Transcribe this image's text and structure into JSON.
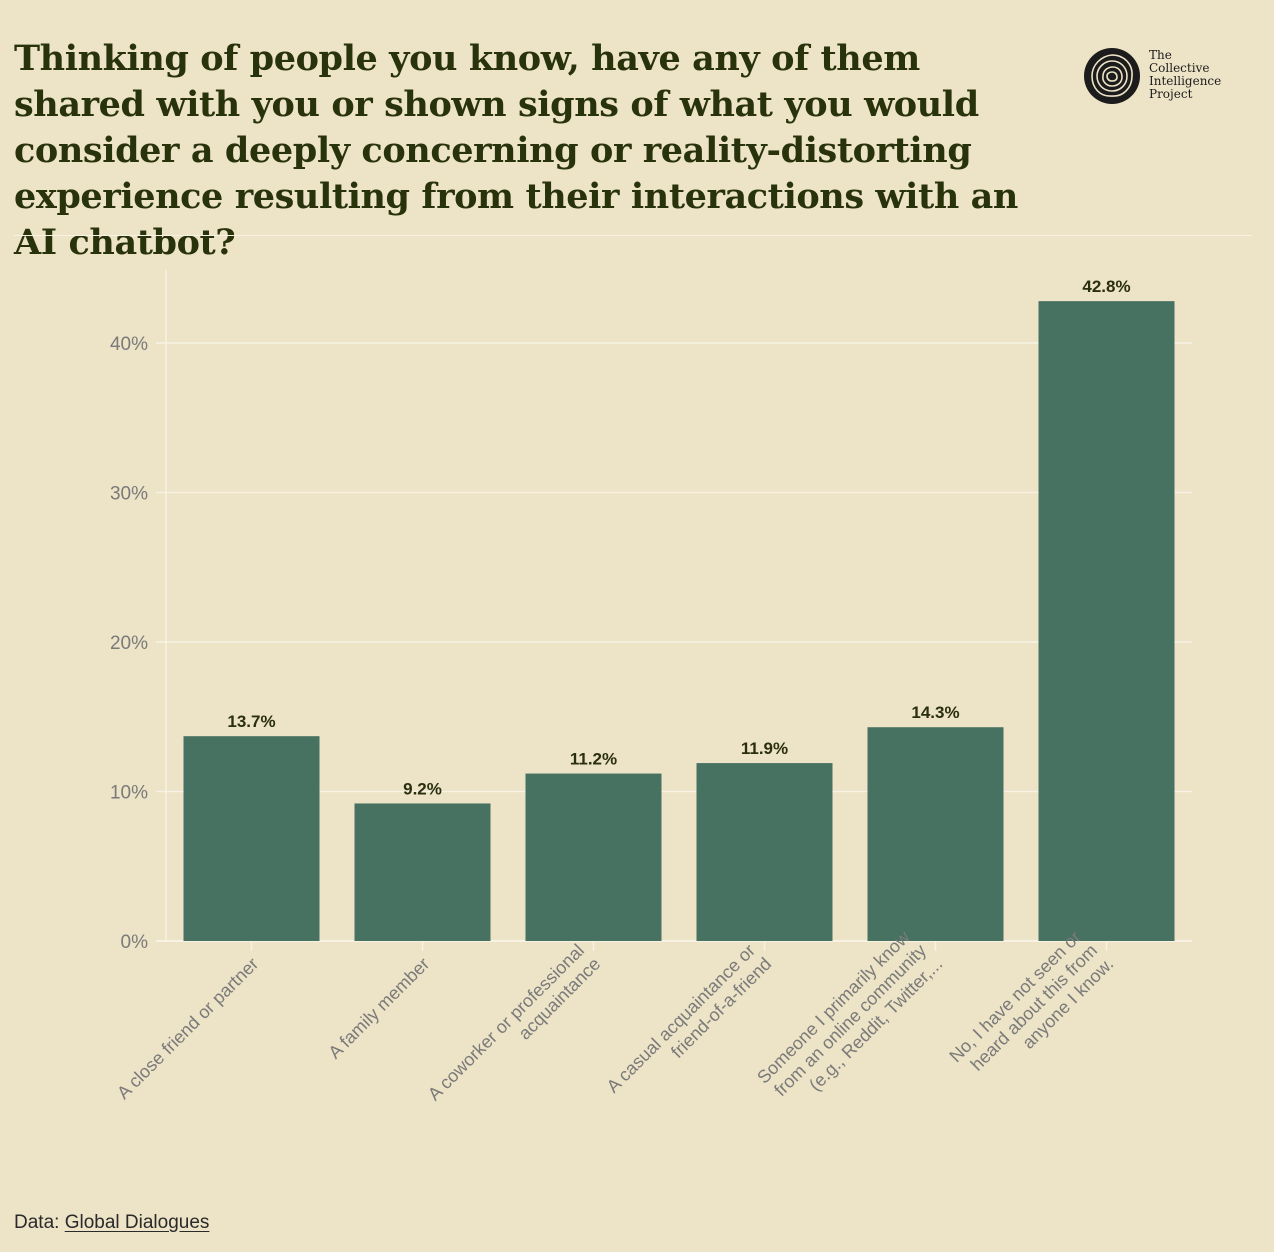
{
  "colors": {
    "background": "#ede3c6",
    "bar": "#477261",
    "title": "#28330c",
    "gridline": "#f7f2e3",
    "tick_label": "#7a7a7a",
    "data_label": "#2a300f"
  },
  "logo": {
    "icon": "concentric-rings-icon",
    "lines": [
      "The",
      "Collective",
      "Intelligence",
      "Project"
    ]
  },
  "footer": {
    "prefix": "Data: ",
    "link_text": "Global Dialogues"
  },
  "chart_data": {
    "type": "bar",
    "title": "Thinking of people you know, have any of them shared with you or shown signs of what you would consider a deeply concerning or reality-distorting experience resulting from their interactions with an AI chatbot?",
    "categories": [
      [
        "A close friend or partner"
      ],
      [
        "A family member"
      ],
      [
        "A coworker or professional",
        "acquaintance"
      ],
      [
        "A casual acquaintance or",
        "friend-of-a-friend"
      ],
      [
        "Someone I primarily know",
        "from an online community",
        "(e.g., Reddit, Twitter,..."
      ],
      [
        "No, I have not seen or",
        "heard about this from",
        "anyone I know."
      ]
    ],
    "values": [
      13.7,
      9.2,
      11.2,
      11.9,
      14.3,
      42.8
    ],
    "value_labels": [
      "13.7%",
      "9.2%",
      "11.2%",
      "11.9%",
      "14.3%",
      "42.8%"
    ],
    "y_ticks": [
      0,
      10,
      20,
      30,
      40
    ],
    "y_tick_labels": [
      "0%",
      "10%",
      "20%",
      "30%",
      "40%"
    ],
    "ylim": [
      0,
      45
    ],
    "xlabel": "",
    "ylabel": "",
    "grid": true
  }
}
